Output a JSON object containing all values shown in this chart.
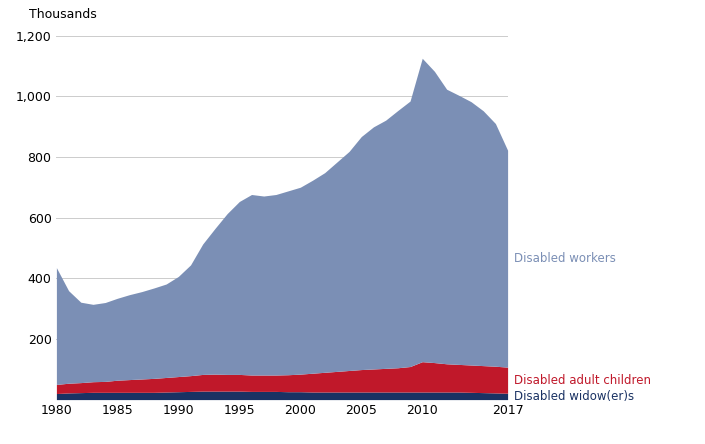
{
  "years": [
    1980,
    1981,
    1982,
    1983,
    1984,
    1985,
    1986,
    1987,
    1988,
    1989,
    1990,
    1991,
    1992,
    1993,
    1994,
    1995,
    1996,
    1997,
    1998,
    1999,
    2000,
    2001,
    2002,
    2003,
    2004,
    2005,
    2006,
    2007,
    2008,
    2009,
    2010,
    2011,
    2012,
    2013,
    2014,
    2015,
    2016,
    2017
  ],
  "disabled_widowers": [
    20,
    22,
    23,
    24,
    24,
    24,
    24,
    24,
    24,
    25,
    26,
    27,
    28,
    28,
    28,
    28,
    27,
    27,
    27,
    26,
    26,
    25,
    25,
    25,
    25,
    25,
    25,
    25,
    25,
    25,
    25,
    25,
    25,
    25,
    24,
    23,
    22,
    21
  ],
  "disabled_adult_children": [
    30,
    32,
    33,
    35,
    36,
    40,
    42,
    44,
    46,
    48,
    50,
    52,
    55,
    56,
    55,
    55,
    54,
    54,
    54,
    56,
    58,
    62,
    65,
    68,
    71,
    74,
    76,
    78,
    80,
    84,
    100,
    97,
    93,
    91,
    90,
    89,
    88,
    86
  ],
  "disabled_workers": [
    385,
    305,
    265,
    255,
    260,
    270,
    280,
    288,
    298,
    308,
    330,
    365,
    430,
    480,
    530,
    570,
    595,
    590,
    595,
    606,
    616,
    636,
    658,
    690,
    722,
    768,
    798,
    818,
    848,
    875,
    1000,
    960,
    905,
    887,
    868,
    840,
    800,
    715
  ],
  "color_widowers": "#1a3263",
  "color_adult_children": "#c0182a",
  "color_workers": "#7b8fb5",
  "ylabel": "Thousands",
  "ylim": [
    0,
    1200
  ],
  "yticks": [
    200,
    400,
    600,
    800,
    1000,
    1200
  ],
  "xlim": [
    1980,
    2017
  ],
  "xticks": [
    1980,
    1985,
    1990,
    1995,
    2000,
    2005,
    2010,
    2017
  ],
  "label_workers": "Disabled workers",
  "label_adult_children": "Disabled adult children",
  "label_widowers": "Disabled widow(er)s",
  "label_fontsize": 8.5,
  "tick_fontsize": 9
}
